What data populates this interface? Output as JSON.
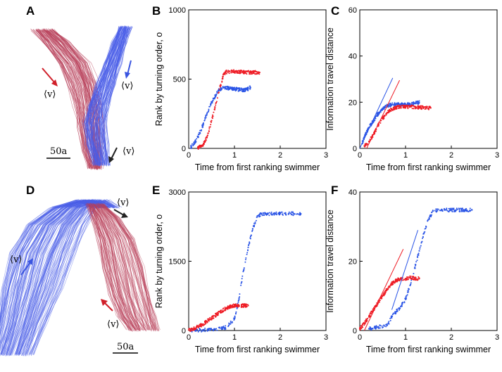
{
  "figure": {
    "panel_letters": [
      "A",
      "B",
      "C",
      "D",
      "E",
      "F"
    ],
    "trajectory_panels": [
      {
        "id": "A",
        "scale_bar": "50a",
        "velocity_labels": [
          {
            "text": "⟨v⟩",
            "color": "#d0202a",
            "direction": "down-right"
          },
          {
            "text": "⟨v⟩",
            "color": "#3a55e0",
            "direction": "down"
          },
          {
            "text": "⟨v⟩",
            "color": "#222222",
            "direction": "down-left"
          }
        ]
      },
      {
        "id": "D",
        "scale_bar": "50a",
        "velocity_labels": [
          {
            "text": "⟨v⟩",
            "color": "#222222",
            "direction": "down-right"
          },
          {
            "text": "⟨v⟩",
            "color": "#3a55e0",
            "direction": "up-right"
          },
          {
            "text": "⟨v⟩",
            "color": "#d0202a",
            "direction": "up-left"
          }
        ]
      }
    ]
  },
  "colors": {
    "red": "#ee1c25",
    "blue": "#2b55e6",
    "red_track": "#b8405a",
    "blue_track": "#4a5ee8"
  },
  "chart_data": [
    {
      "id": "B",
      "type": "scatter",
      "xlabel": "Time from first ranking swimmer",
      "ylabel": "Rank by turning order, o",
      "xlim": [
        0,
        3
      ],
      "ylim": [
        0,
        1000
      ],
      "xticks": [
        "0",
        "1",
        "2",
        "3"
      ],
      "yticks": [
        "0",
        "500",
        "1000"
      ],
      "series": [
        {
          "name": "blue",
          "color": "#2b55e6",
          "points": [
            [
              0.05,
              10
            ],
            [
              0.12,
              40
            ],
            [
              0.2,
              80
            ],
            [
              0.3,
              160
            ],
            [
              0.4,
              250
            ],
            [
              0.5,
              330
            ],
            [
              0.6,
              390
            ],
            [
              0.65,
              420
            ],
            [
              0.7,
              430
            ],
            [
              0.75,
              440
            ],
            [
              1.2,
              420
            ],
            [
              1.3,
              430
            ],
            [
              1.35,
              440
            ]
          ]
        },
        {
          "name": "red",
          "color": "#ee1c25",
          "points": [
            [
              0.2,
              5
            ],
            [
              0.3,
              20
            ],
            [
              0.4,
              80
            ],
            [
              0.5,
              200
            ],
            [
              0.6,
              330
            ],
            [
              0.65,
              400
            ],
            [
              0.7,
              460
            ],
            [
              0.75,
              520
            ],
            [
              0.8,
              550
            ],
            [
              0.9,
              555
            ],
            [
              1.0,
              555
            ],
            [
              1.2,
              550
            ],
            [
              1.55,
              548
            ]
          ]
        }
      ],
      "fit_lines": []
    },
    {
      "id": "C",
      "type": "scatter",
      "xlabel": "Time from first ranking swimmer",
      "ylabel": "Information travel distance",
      "xlim": [
        0,
        3
      ],
      "ylim": [
        0,
        60
      ],
      "xticks": [
        "0",
        "1",
        "2",
        "3"
      ],
      "yticks": [
        "0",
        "20",
        "40",
        "60"
      ],
      "series": [
        {
          "name": "blue",
          "color": "#2b55e6",
          "points": [
            [
              0.05,
              2
            ],
            [
              0.1,
              5
            ],
            [
              0.2,
              9
            ],
            [
              0.3,
              12
            ],
            [
              0.4,
              15
            ],
            [
              0.5,
              17
            ],
            [
              0.6,
              18.5
            ],
            [
              0.7,
              19
            ],
            [
              1.1,
              19
            ],
            [
              1.2,
              19.5
            ],
            [
              1.3,
              19.8
            ]
          ]
        },
        {
          "name": "red",
          "color": "#ee1c25",
          "points": [
            [
              0.1,
              1
            ],
            [
              0.2,
              3
            ],
            [
              0.3,
              6
            ],
            [
              0.4,
              10
            ],
            [
              0.5,
              13
            ],
            [
              0.6,
              15.5
            ],
            [
              0.7,
              17
            ],
            [
              0.8,
              17.8
            ],
            [
              0.9,
              18
            ],
            [
              1.0,
              18
            ],
            [
              1.1,
              18
            ],
            [
              1.55,
              17.5
            ]
          ]
        }
      ],
      "fit_lines": [
        {
          "color": "#2b55e6",
          "from": [
            0,
            0
          ],
          "to": [
            0.72,
            30.5
          ]
        },
        {
          "color": "#ee1c25",
          "from": [
            0.15,
            0
          ],
          "to": [
            0.87,
            29.5
          ]
        }
      ]
    },
    {
      "id": "E",
      "type": "scatter",
      "xlabel": "Time from first ranking swimmer",
      "ylabel": "Rank by turning order, o",
      "xlim": [
        0,
        3
      ],
      "ylim": [
        0,
        3000
      ],
      "xticks": [
        "0",
        "1",
        "2",
        "3"
      ],
      "yticks": [
        "0",
        "1500",
        "3000"
      ],
      "series": [
        {
          "name": "blue",
          "color": "#2b55e6",
          "points": [
            [
              0.05,
              5
            ],
            [
              0.3,
              10
            ],
            [
              0.55,
              20
            ],
            [
              0.8,
              60
            ],
            [
              1.0,
              250
            ],
            [
              1.1,
              700
            ],
            [
              1.2,
              1300
            ],
            [
              1.3,
              1800
            ],
            [
              1.4,
              2200
            ],
            [
              1.5,
              2480
            ],
            [
              1.6,
              2520
            ],
            [
              1.8,
              2530
            ],
            [
              2.0,
              2530
            ],
            [
              2.3,
              2530
            ],
            [
              2.45,
              2530
            ]
          ]
        },
        {
          "name": "red",
          "color": "#ee1c25",
          "points": [
            [
              0.0,
              10
            ],
            [
              0.1,
              40
            ],
            [
              0.2,
              80
            ],
            [
              0.3,
              130
            ],
            [
              0.4,
              200
            ],
            [
              0.5,
              270
            ],
            [
              0.6,
              340
            ],
            [
              0.7,
              410
            ],
            [
              0.8,
              470
            ],
            [
              0.9,
              520
            ],
            [
              1.0,
              540
            ],
            [
              1.1,
              540
            ],
            [
              1.3,
              540
            ]
          ]
        }
      ],
      "fit_lines": []
    },
    {
      "id": "F",
      "type": "scatter",
      "xlabel": "Time from first ranking swimmer",
      "ylabel": "Information travel distance",
      "xlim": [
        0,
        3
      ],
      "ylim": [
        0,
        40
      ],
      "xticks": [
        "0",
        "1",
        "2",
        "3"
      ],
      "yticks": [
        "0",
        "20",
        "40"
      ],
      "series": [
        {
          "name": "blue",
          "color": "#2b55e6",
          "points": [
            [
              0.2,
              0.5
            ],
            [
              0.4,
              1
            ],
            [
              0.6,
              1.5
            ],
            [
              0.7,
              4
            ],
            [
              0.8,
              5.5
            ],
            [
              0.9,
              7
            ],
            [
              1.0,
              9
            ],
            [
              1.1,
              13
            ],
            [
              1.2,
              18
            ],
            [
              1.3,
              23
            ],
            [
              1.4,
              28
            ],
            [
              1.5,
              32
            ],
            [
              1.6,
              34.5
            ],
            [
              1.8,
              34.8
            ],
            [
              2.0,
              34.8
            ],
            [
              2.3,
              34.8
            ],
            [
              2.45,
              34.8
            ]
          ]
        },
        {
          "name": "red",
          "color": "#ee1c25",
          "points": [
            [
              0.0,
              0.5
            ],
            [
              0.1,
              2
            ],
            [
              0.2,
              4
            ],
            [
              0.3,
              6
            ],
            [
              0.4,
              8
            ],
            [
              0.5,
              10
            ],
            [
              0.6,
              12
            ],
            [
              0.7,
              13.5
            ],
            [
              0.8,
              14.5
            ],
            [
              0.9,
              15
            ],
            [
              1.0,
              15
            ],
            [
              1.1,
              15.2
            ],
            [
              1.3,
              15
            ]
          ]
        }
      ],
      "fit_lines": [
        {
          "color": "#ee1c25",
          "from": [
            0.1,
            0
          ],
          "to": [
            0.95,
            23.5
          ]
        },
        {
          "color": "#2b55e6",
          "from": [
            0.7,
            6
          ],
          "to": [
            1.27,
            29
          ]
        }
      ]
    }
  ]
}
